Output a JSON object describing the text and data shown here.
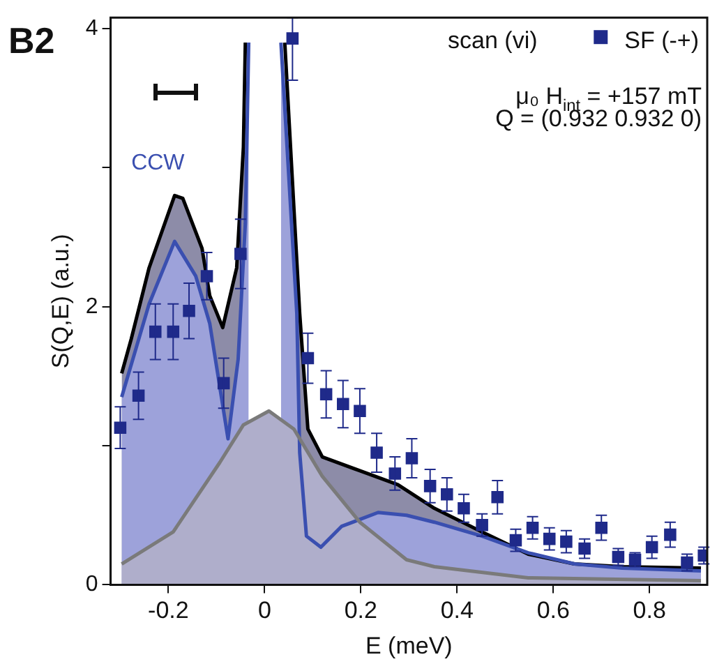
{
  "chart_data": {
    "type": "scatter",
    "xlabel": "E (meV)",
    "ylabel": "S(Q,E) (a.u.)",
    "annotations": [
      "B2",
      "scan (vi)",
      "μ₀ H$_{int}$ = +157 mT",
      "Q = (0.932 0.932 0)"
    ],
    "xlim": [
      -0.32,
      0.92
    ],
    "xticks": [
      -0.2,
      0,
      0.2,
      0.4,
      0.6,
      0.8
    ],
    "ylim": [
      0,
      4.08
    ],
    "yticks": [
      0,
      {
        "value": 1,
        "label": null
      },
      2,
      {
        "value": 3,
        "label": null
      },
      4
    ],
    "legend": "top right",
    "series": [
      {
        "name": "SF (-+)",
        "marker": "square",
        "color": "#1f2a8a",
        "x": [
          -0.3,
          -0.262,
          -0.227,
          -0.19,
          -0.157,
          -0.12,
          -0.085,
          -0.05,
          0.058,
          0.09,
          0.128,
          0.163,
          0.198,
          0.233,
          0.271,
          0.306,
          0.344,
          0.379,
          0.414,
          0.452,
          0.484,
          0.522,
          0.557,
          0.592,
          0.627,
          0.665,
          0.7,
          0.735,
          0.77,
          0.805,
          0.843,
          0.878,
          0.913
        ],
        "values": [
          1.13,
          1.36,
          1.82,
          1.82,
          1.97,
          2.22,
          1.45,
          2.38,
          3.93,
          1.63,
          1.37,
          1.3,
          1.25,
          0.95,
          0.8,
          0.91,
          0.71,
          0.65,
          0.55,
          0.43,
          0.63,
          0.32,
          0.41,
          0.33,
          0.31,
          0.26,
          0.41,
          0.2,
          0.18,
          0.27,
          0.36,
          0.16,
          0.21
        ],
        "errors": [
          0.15,
          0.17,
          0.2,
          0.2,
          0.2,
          0.17,
          0.18,
          0.25,
          [
            3.63,
            4.08
          ],
          0.18,
          0.17,
          0.17,
          0.16,
          0.14,
          0.12,
          0.14,
          0.12,
          0.12,
          0.1,
          0.08,
          0.12,
          0.08,
          0.08,
          0.08,
          0.08,
          0.07,
          0.09,
          0.06,
          0.05,
          0.08,
          0.09,
          0.06,
          0.06
        ]
      },
      {
        "type": "area",
        "color": "#000000",
        "x": [
          -0.297,
          -0.277,
          -0.24,
          -0.187,
          -0.17,
          -0.13,
          -0.114,
          -0.087,
          -0.058,
          -0.044,
          -0.04,
          0,
          0.042,
          0.073,
          0.09,
          0.12,
          0.198,
          0.277,
          0.353,
          0.452,
          0.548,
          0.644,
          0.743,
          0.907
        ],
        "values": [
          1.52,
          1.77,
          2.28,
          2.8,
          2.78,
          2.42,
          2.08,
          1.85,
          2.28,
          3.15,
          3.9,
          null,
          3.9,
          1.95,
          1.12,
          0.92,
          0.82,
          0.72,
          0.55,
          0.38,
          0.22,
          0.15,
          0.13,
          0.12
        ]
      },
      {
        "name": "CCW",
        "type": "area",
        "color": "#3a4fb0",
        "x": [
          -0.297,
          -0.24,
          -0.187,
          -0.143,
          -0.114,
          -0.076,
          -0.055,
          -0.04,
          -0.033,
          0,
          0.034,
          0.067,
          0.073,
          0.087,
          0.117,
          0.16,
          0.236,
          0.295,
          0.353,
          0.452,
          0.548,
          0.644,
          0.743,
          0.907
        ],
        "values": [
          1.35,
          2.02,
          2.47,
          2.22,
          1.88,
          1.05,
          1.62,
          2.6,
          3.9,
          null,
          3.9,
          1.95,
          0.95,
          0.35,
          0.27,
          0.42,
          0.52,
          0.5,
          0.45,
          0.35,
          0.23,
          0.15,
          0.12,
          0.1
        ]
      },
      {
        "type": "area",
        "color": "#7a7a7a",
        "x": [
          -0.297,
          -0.19,
          -0.093,
          -0.044,
          0.009,
          0.061,
          0.12,
          0.198,
          0.295,
          0.353,
          0.548,
          0.907
        ],
        "values": [
          0.15,
          0.38,
          0.88,
          1.15,
          1.25,
          1.12,
          0.78,
          0.45,
          0.18,
          0.13,
          0.05,
          0.03
        ]
      }
    ]
  }
}
